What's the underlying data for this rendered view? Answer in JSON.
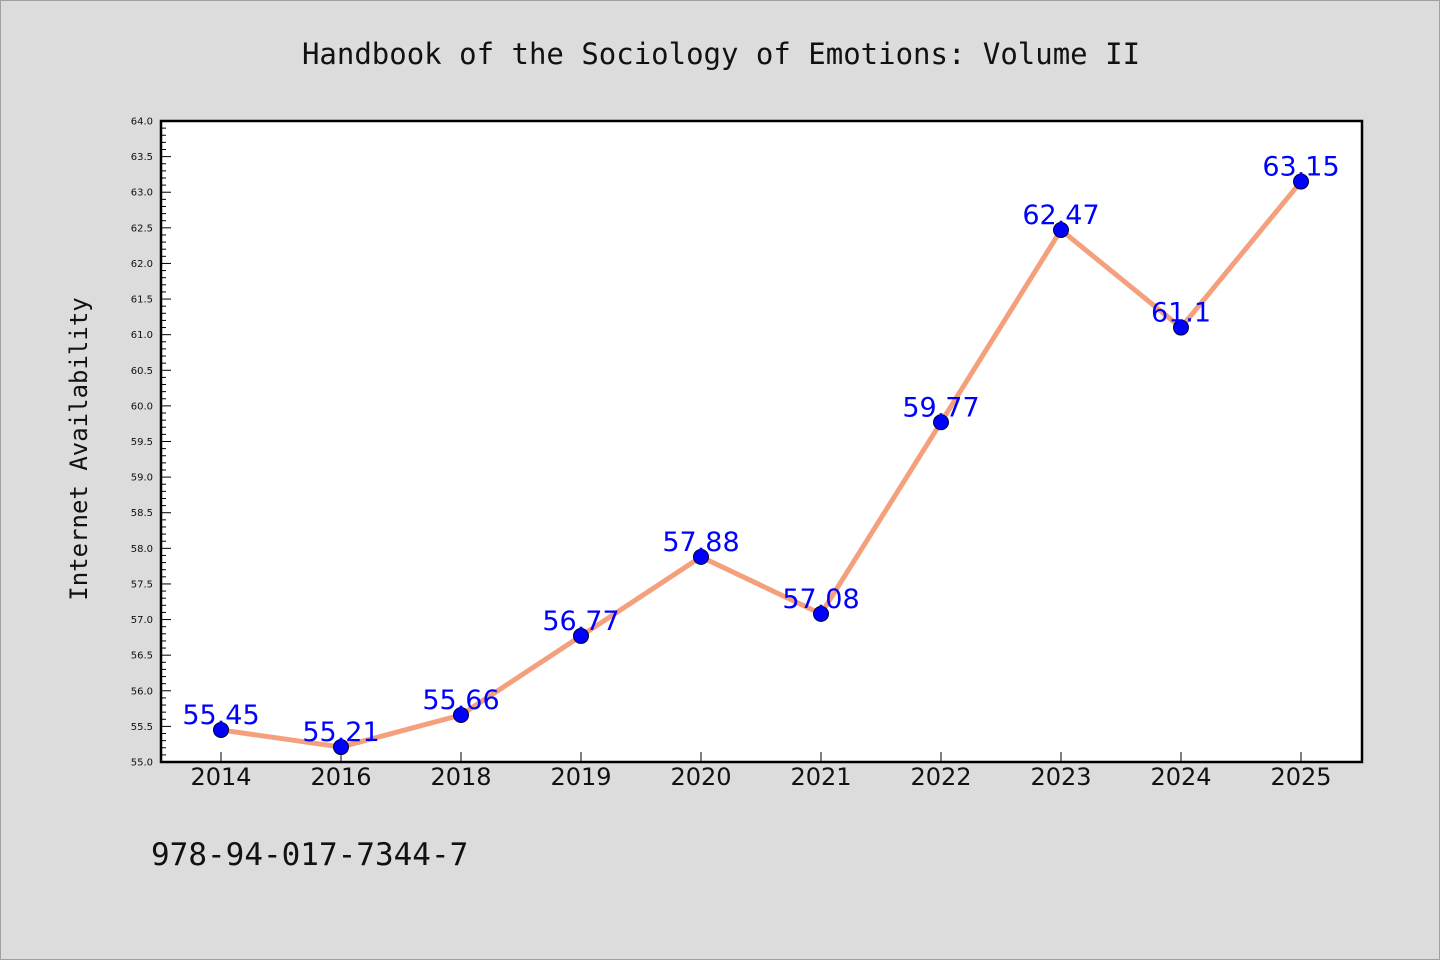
{
  "chart_data": {
    "type": "line",
    "title": "Handbook of the Sociology of Emotions: Volume II",
    "xlabel": "",
    "ylabel": "Internet Availability",
    "categories": [
      "2014",
      "2016",
      "2018",
      "2019",
      "2020",
      "2021",
      "2022",
      "2023",
      "2024",
      "2025"
    ],
    "series": [
      {
        "values": [
          55.45,
          55.21,
          55.66,
          56.77,
          57.88,
          57.08,
          59.77,
          62.47,
          61.1,
          63.15
        ],
        "labels": [
          "55.45",
          "55.21",
          "55.66",
          "56.77",
          "57.88",
          "57.08",
          "59.77",
          "62.47",
          "61.1",
          "63.15"
        ]
      }
    ],
    "ylim": [
      55.0,
      64.0
    ],
    "yticks": [
      "55.0",
      "55.5",
      "56.0",
      "56.5",
      "57.0",
      "57.5",
      "58.0",
      "58.5",
      "59.0",
      "59.5",
      "60.0",
      "60.5",
      "61.0",
      "61.5",
      "62.0",
      "62.5",
      "63.0",
      "63.5",
      "64.0"
    ],
    "grid": false,
    "legend": "none",
    "colors": {
      "line": "#f4a07c",
      "marker": "#0000ff",
      "data_label": "#0000ff",
      "background": "#dcdcdc",
      "plot_background": "#ffffff"
    }
  },
  "footer": {
    "isbn": "978-94-017-7344-7"
  }
}
